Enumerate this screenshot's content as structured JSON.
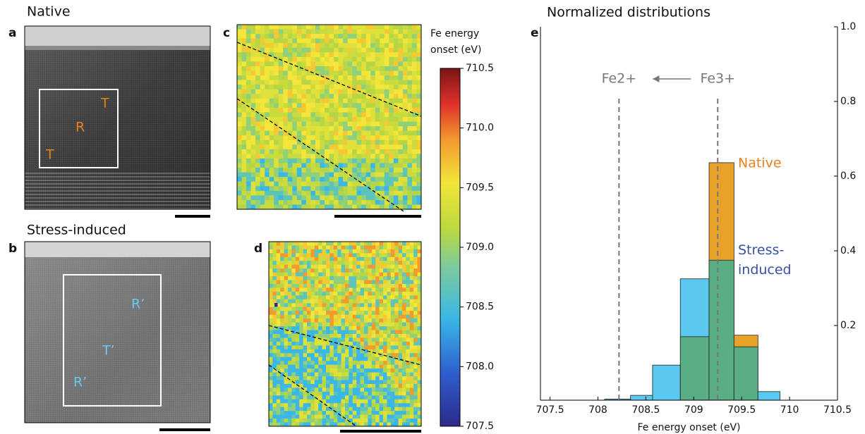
{
  "panels": {
    "a": {
      "letter": "a",
      "title": "Native",
      "labels": [
        "T",
        "R",
        "T"
      ]
    },
    "b": {
      "letter": "b",
      "title": "Stress-induced",
      "labels": [
        "R’",
        "T’",
        "R’"
      ]
    },
    "c": {
      "letter": "c"
    },
    "d": {
      "letter": "d"
    }
  },
  "colorbar": {
    "title_lines": [
      "Fe energy",
      "onset (eV)"
    ],
    "lim": [
      707.5,
      710.5
    ],
    "ticks": [
      707.5,
      {
        "value": 708,
        "label": "708.0"
      },
      708.5,
      {
        "value": 709,
        "label": "709.0"
      },
      709.5,
      {
        "value": 710,
        "label": "710.0"
      },
      710.5
    ]
  },
  "chart_data": {
    "type": "histogram",
    "panel_label": "e",
    "title": "Normalized distributions",
    "x_label": "Fe energy onset (eV)",
    "bins": [
      708.07,
      708.34,
      708.57,
      708.86,
      709.16,
      709.42,
      709.67,
      709.9
    ],
    "series": [
      {
        "name": "Native",
        "color": "#e8a22a",
        "values": [
          0,
          0,
          0,
          0.17,
          0.636,
          0.174,
          0
        ]
      },
      {
        "name": "Stress-induced",
        "color": "#5bc8ef",
        "values": [
          0.003,
          0.013,
          0.094,
          0.325,
          0.375,
          0.143,
          0.023
        ]
      }
    ],
    "overlap_color": "#5aae84",
    "legend_colors": [
      "#e8821e",
      "#3a4fa8"
    ],
    "reference_lines": [
      {
        "label": "Fe2+",
        "x": 708.22
      },
      {
        "label": "Fe3+",
        "x": 709.25
      }
    ],
    "xlim": [
      707.4,
      710.5
    ],
    "xticks": [
      707.5,
      708,
      708.5,
      709,
      709.5,
      710,
      710.5
    ],
    "ylim": [
      0,
      1
    ],
    "yticks": [
      0.2,
      0.4,
      0.6,
      0.8,
      {
        "value": 1,
        "label": "1.0"
      }
    ]
  }
}
